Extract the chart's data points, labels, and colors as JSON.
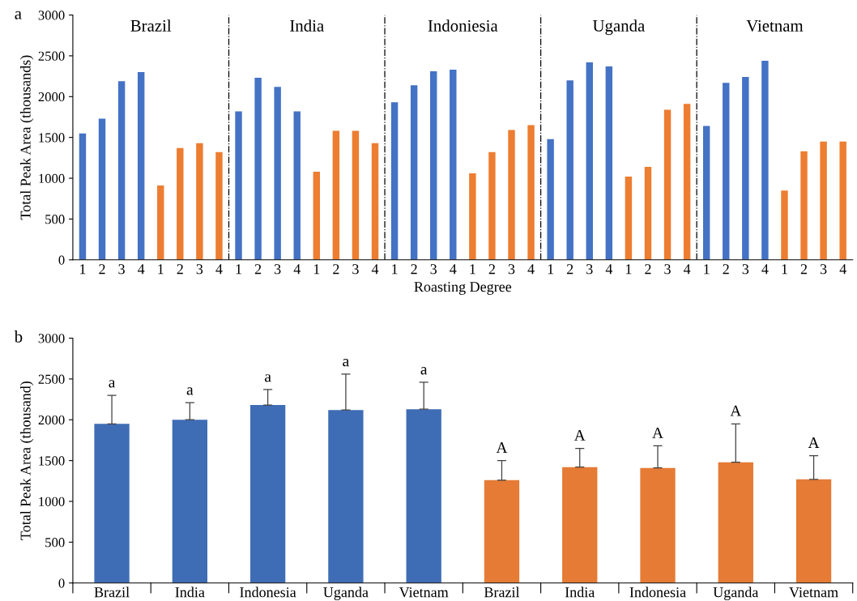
{
  "chart_data": [
    {
      "type": "bar",
      "title": "a",
      "xlabel": "Roasting Degree",
      "ylabel": "Total Peak Area (thousands)",
      "categories": [
        "1",
        "2",
        "3",
        "4",
        "1",
        "2",
        "3",
        "4",
        "1",
        "2",
        "3",
        "4",
        "1",
        "2",
        "3",
        "4",
        "1",
        "2",
        "3",
        "4",
        "1",
        "2",
        "3",
        "4",
        "1",
        "2",
        "3",
        "4",
        "1",
        "2",
        "3",
        "4",
        "1",
        "2",
        "3",
        "4",
        "1",
        "2",
        "3",
        "4"
      ],
      "ylim": [
        0,
        3000
      ],
      "yticks": [
        0,
        500,
        1000,
        1500,
        2000,
        2500,
        3000
      ],
      "grid": false,
      "legend": false,
      "series": [
        {
          "color": "#4472c4",
          "values": [
            1550,
            1730,
            2190,
            2300,
            null,
            null,
            null,
            null,
            1820,
            2230,
            2120,
            1820,
            null,
            null,
            null,
            null,
            1930,
            2140,
            2310,
            2330,
            null,
            null,
            null,
            null,
            1480,
            2200,
            2420,
            2370,
            null,
            null,
            null,
            null,
            1640,
            2170,
            2240,
            2440,
            null,
            null,
            null,
            null
          ]
        },
        {
          "color": "#ed7d31",
          "values": [
            null,
            null,
            null,
            null,
            910,
            1370,
            1430,
            1320,
            null,
            null,
            null,
            null,
            1080,
            1580,
            1580,
            1430,
            null,
            null,
            null,
            null,
            1060,
            1320,
            1590,
            1650,
            null,
            null,
            null,
            null,
            1020,
            1140,
            1840,
            1910,
            null,
            null,
            null,
            null,
            850,
            1330,
            1450,
            1450
          ]
        }
      ],
      "annotations": [
        "Brazil",
        "India",
        "Indoniesia",
        "Uganda",
        "Vietnam"
      ]
    },
    {
      "type": "bar",
      "title": "b",
      "ylabel": "Total Peak Area (thousand)",
      "categories": [
        "Brazil",
        "India",
        "Indonesia",
        "Uganda",
        "Vietnam",
        "Brazil",
        "India",
        "Indonesia",
        "Uganda",
        "Vietnam"
      ],
      "ylim": [
        0,
        3000
      ],
      "yticks": [
        0,
        500,
        1000,
        1500,
        2000,
        2500,
        3000
      ],
      "grid": false,
      "legend": false,
      "series": [
        {
          "color": "#3f6db5",
          "values": [
            1950,
            2000,
            2180,
            2120,
            2130,
            null,
            null,
            null,
            null,
            null
          ],
          "errors": [
            [
              1950,
              2300
            ],
            [
              2000,
              2210
            ],
            [
              2180,
              2370
            ],
            [
              2120,
              2560
            ],
            [
              2130,
              2460
            ],
            null,
            null,
            null,
            null,
            null
          ]
        },
        {
          "color": "#e57b35",
          "values": [
            null,
            null,
            null,
            null,
            null,
            1260,
            1420,
            1410,
            1480,
            1270
          ],
          "errors": [
            null,
            null,
            null,
            null,
            null,
            [
              1260,
              1500
            ],
            [
              1420,
              1650
            ],
            [
              1410,
              1680
            ],
            [
              1480,
              1950
            ],
            [
              1270,
              1560
            ]
          ]
        }
      ],
      "annotations": [
        "a",
        "a",
        "a",
        "a",
        "a",
        "A",
        "A",
        "A",
        "A",
        "A"
      ]
    }
  ]
}
